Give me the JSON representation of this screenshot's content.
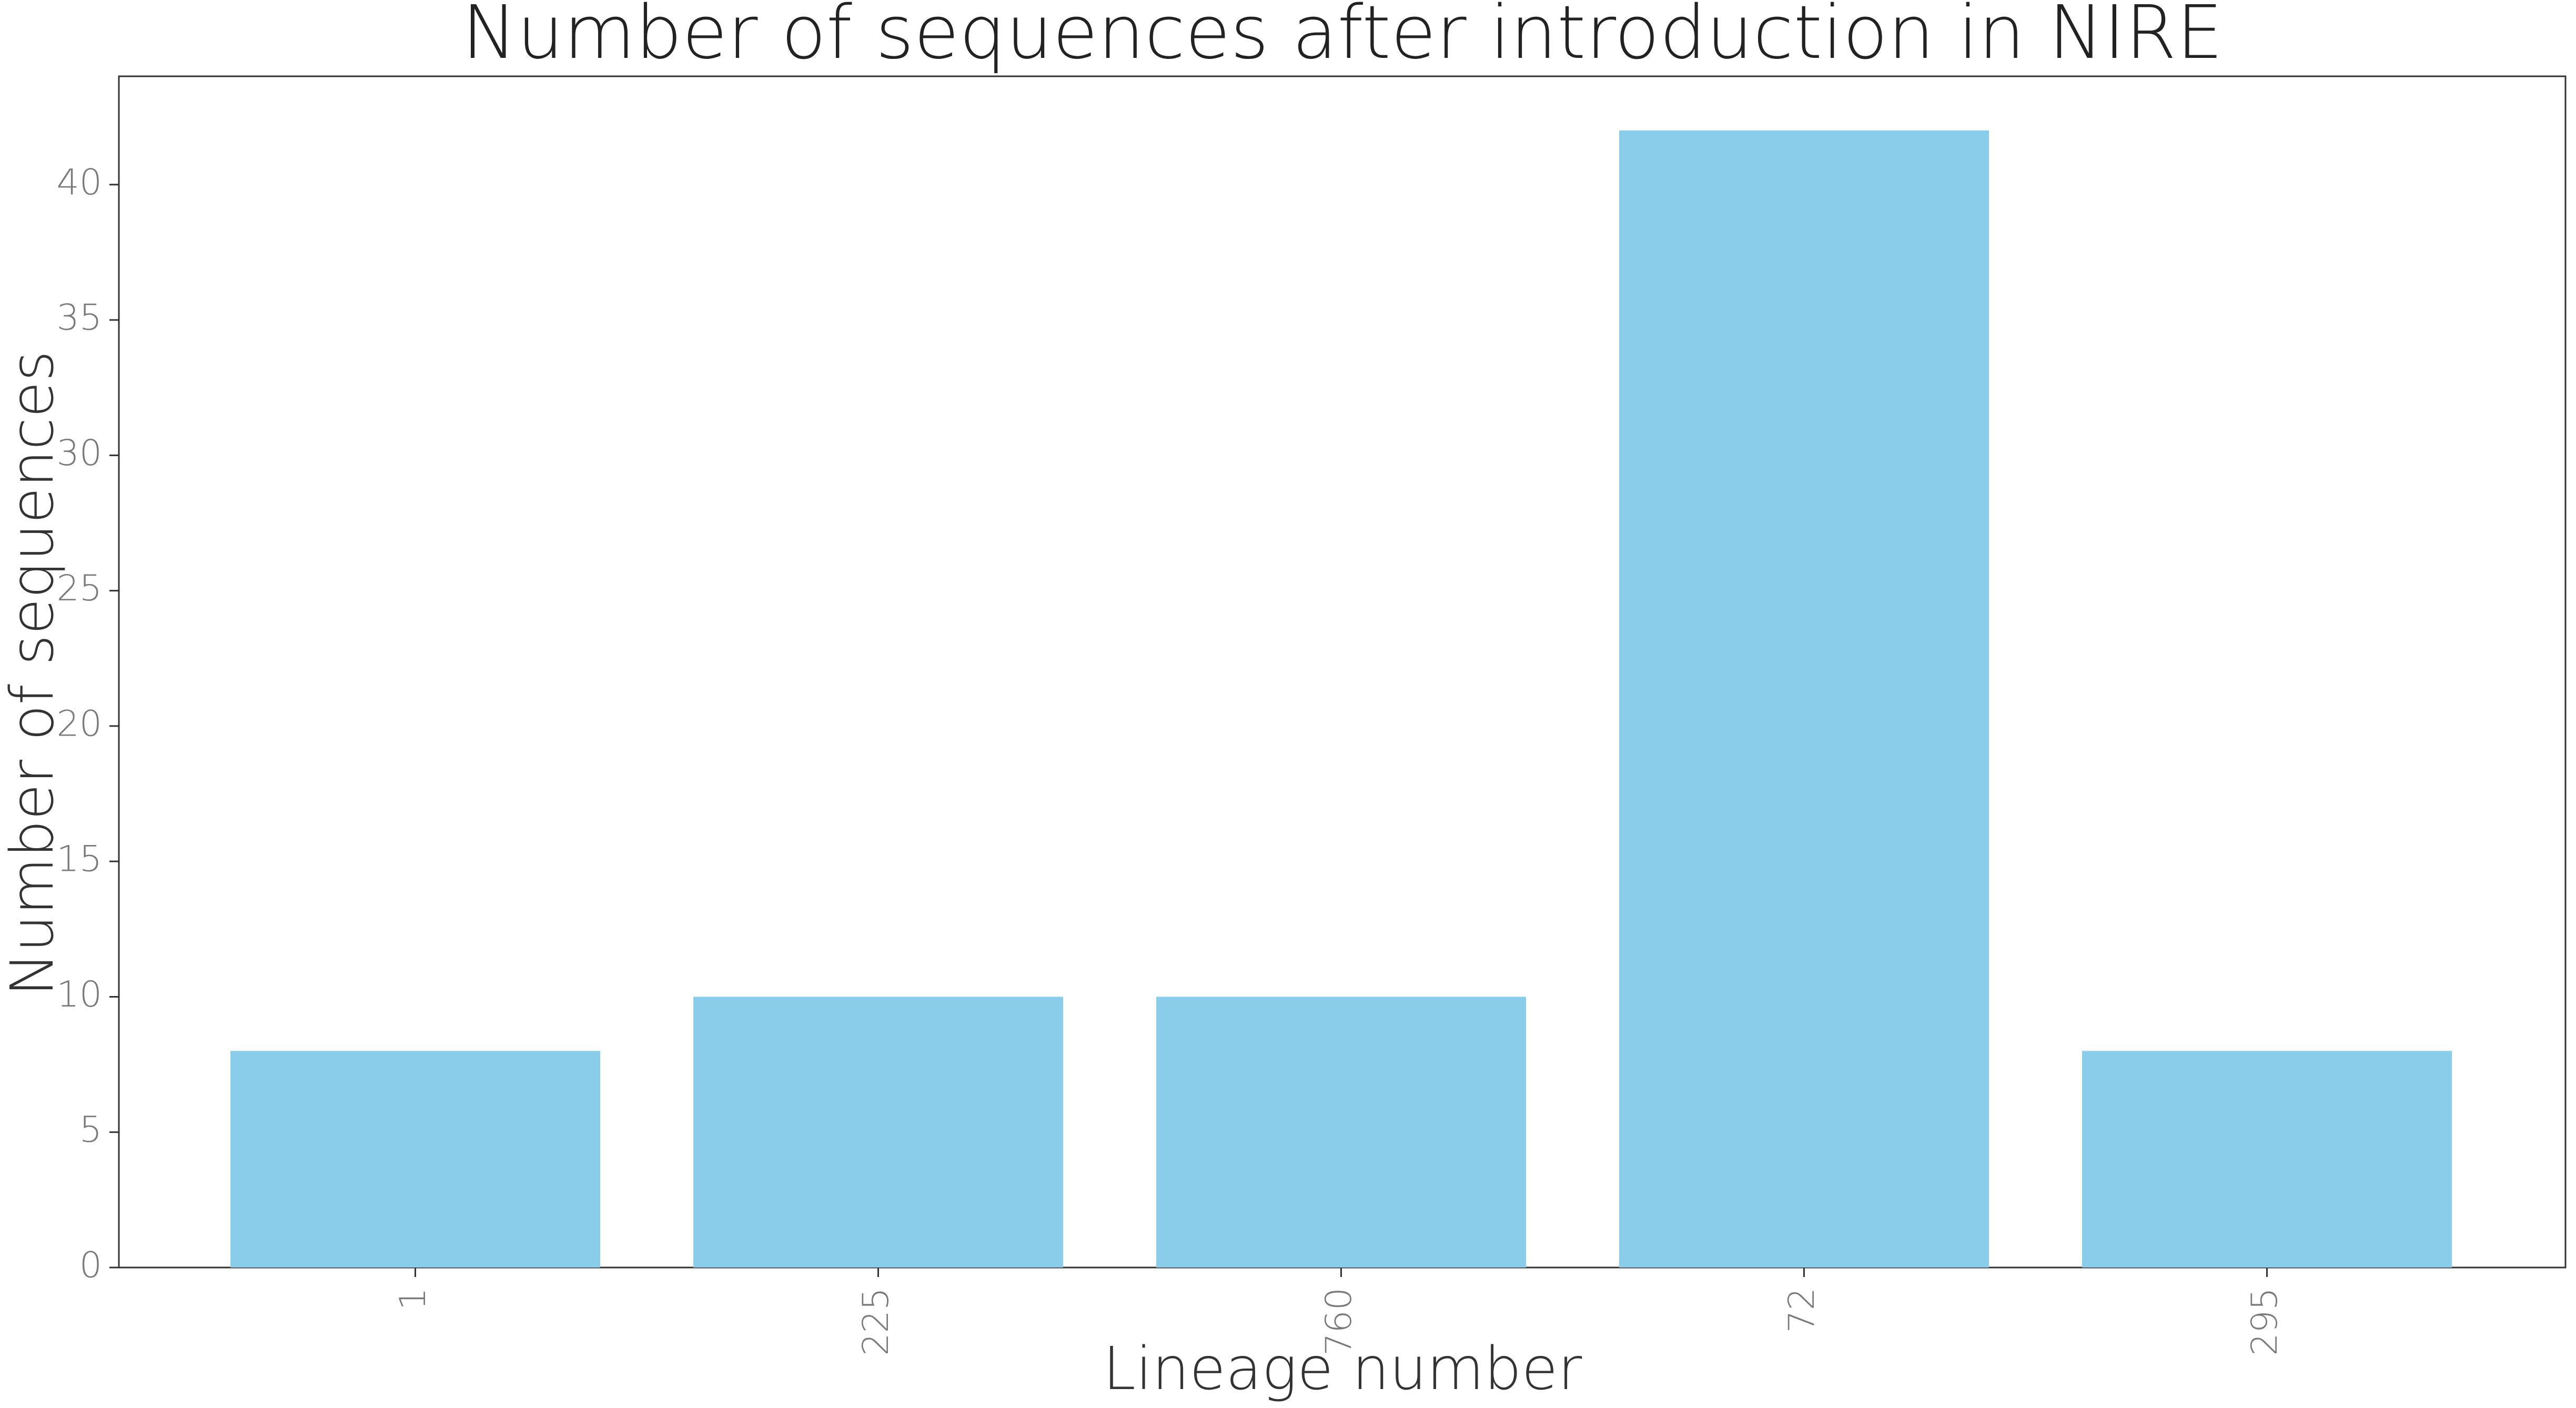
{
  "chart_data": {
    "type": "bar",
    "title": "Number of sequences after introduction in NIRE",
    "xlabel": "Lineage number",
    "ylabel": "Number of sequences",
    "categories": [
      "1",
      "225",
      "760",
      "72",
      "295"
    ],
    "values": [
      8,
      10,
      10,
      42,
      8
    ],
    "ylim": [
      0,
      44
    ],
    "yticks": [
      0,
      5,
      10,
      15,
      20,
      25,
      30,
      35,
      40
    ],
    "ytick_labels": [
      "0",
      "5",
      "10",
      "15",
      "20",
      "25",
      "30",
      "35",
      "40"
    ],
    "grid": false,
    "legend": "none",
    "x_tick_rotation": "vertical",
    "colors": {
      "bar": "#89CDEA",
      "axis": "#333333",
      "tick_label": "#7a7a7a",
      "title": "#222222"
    }
  }
}
